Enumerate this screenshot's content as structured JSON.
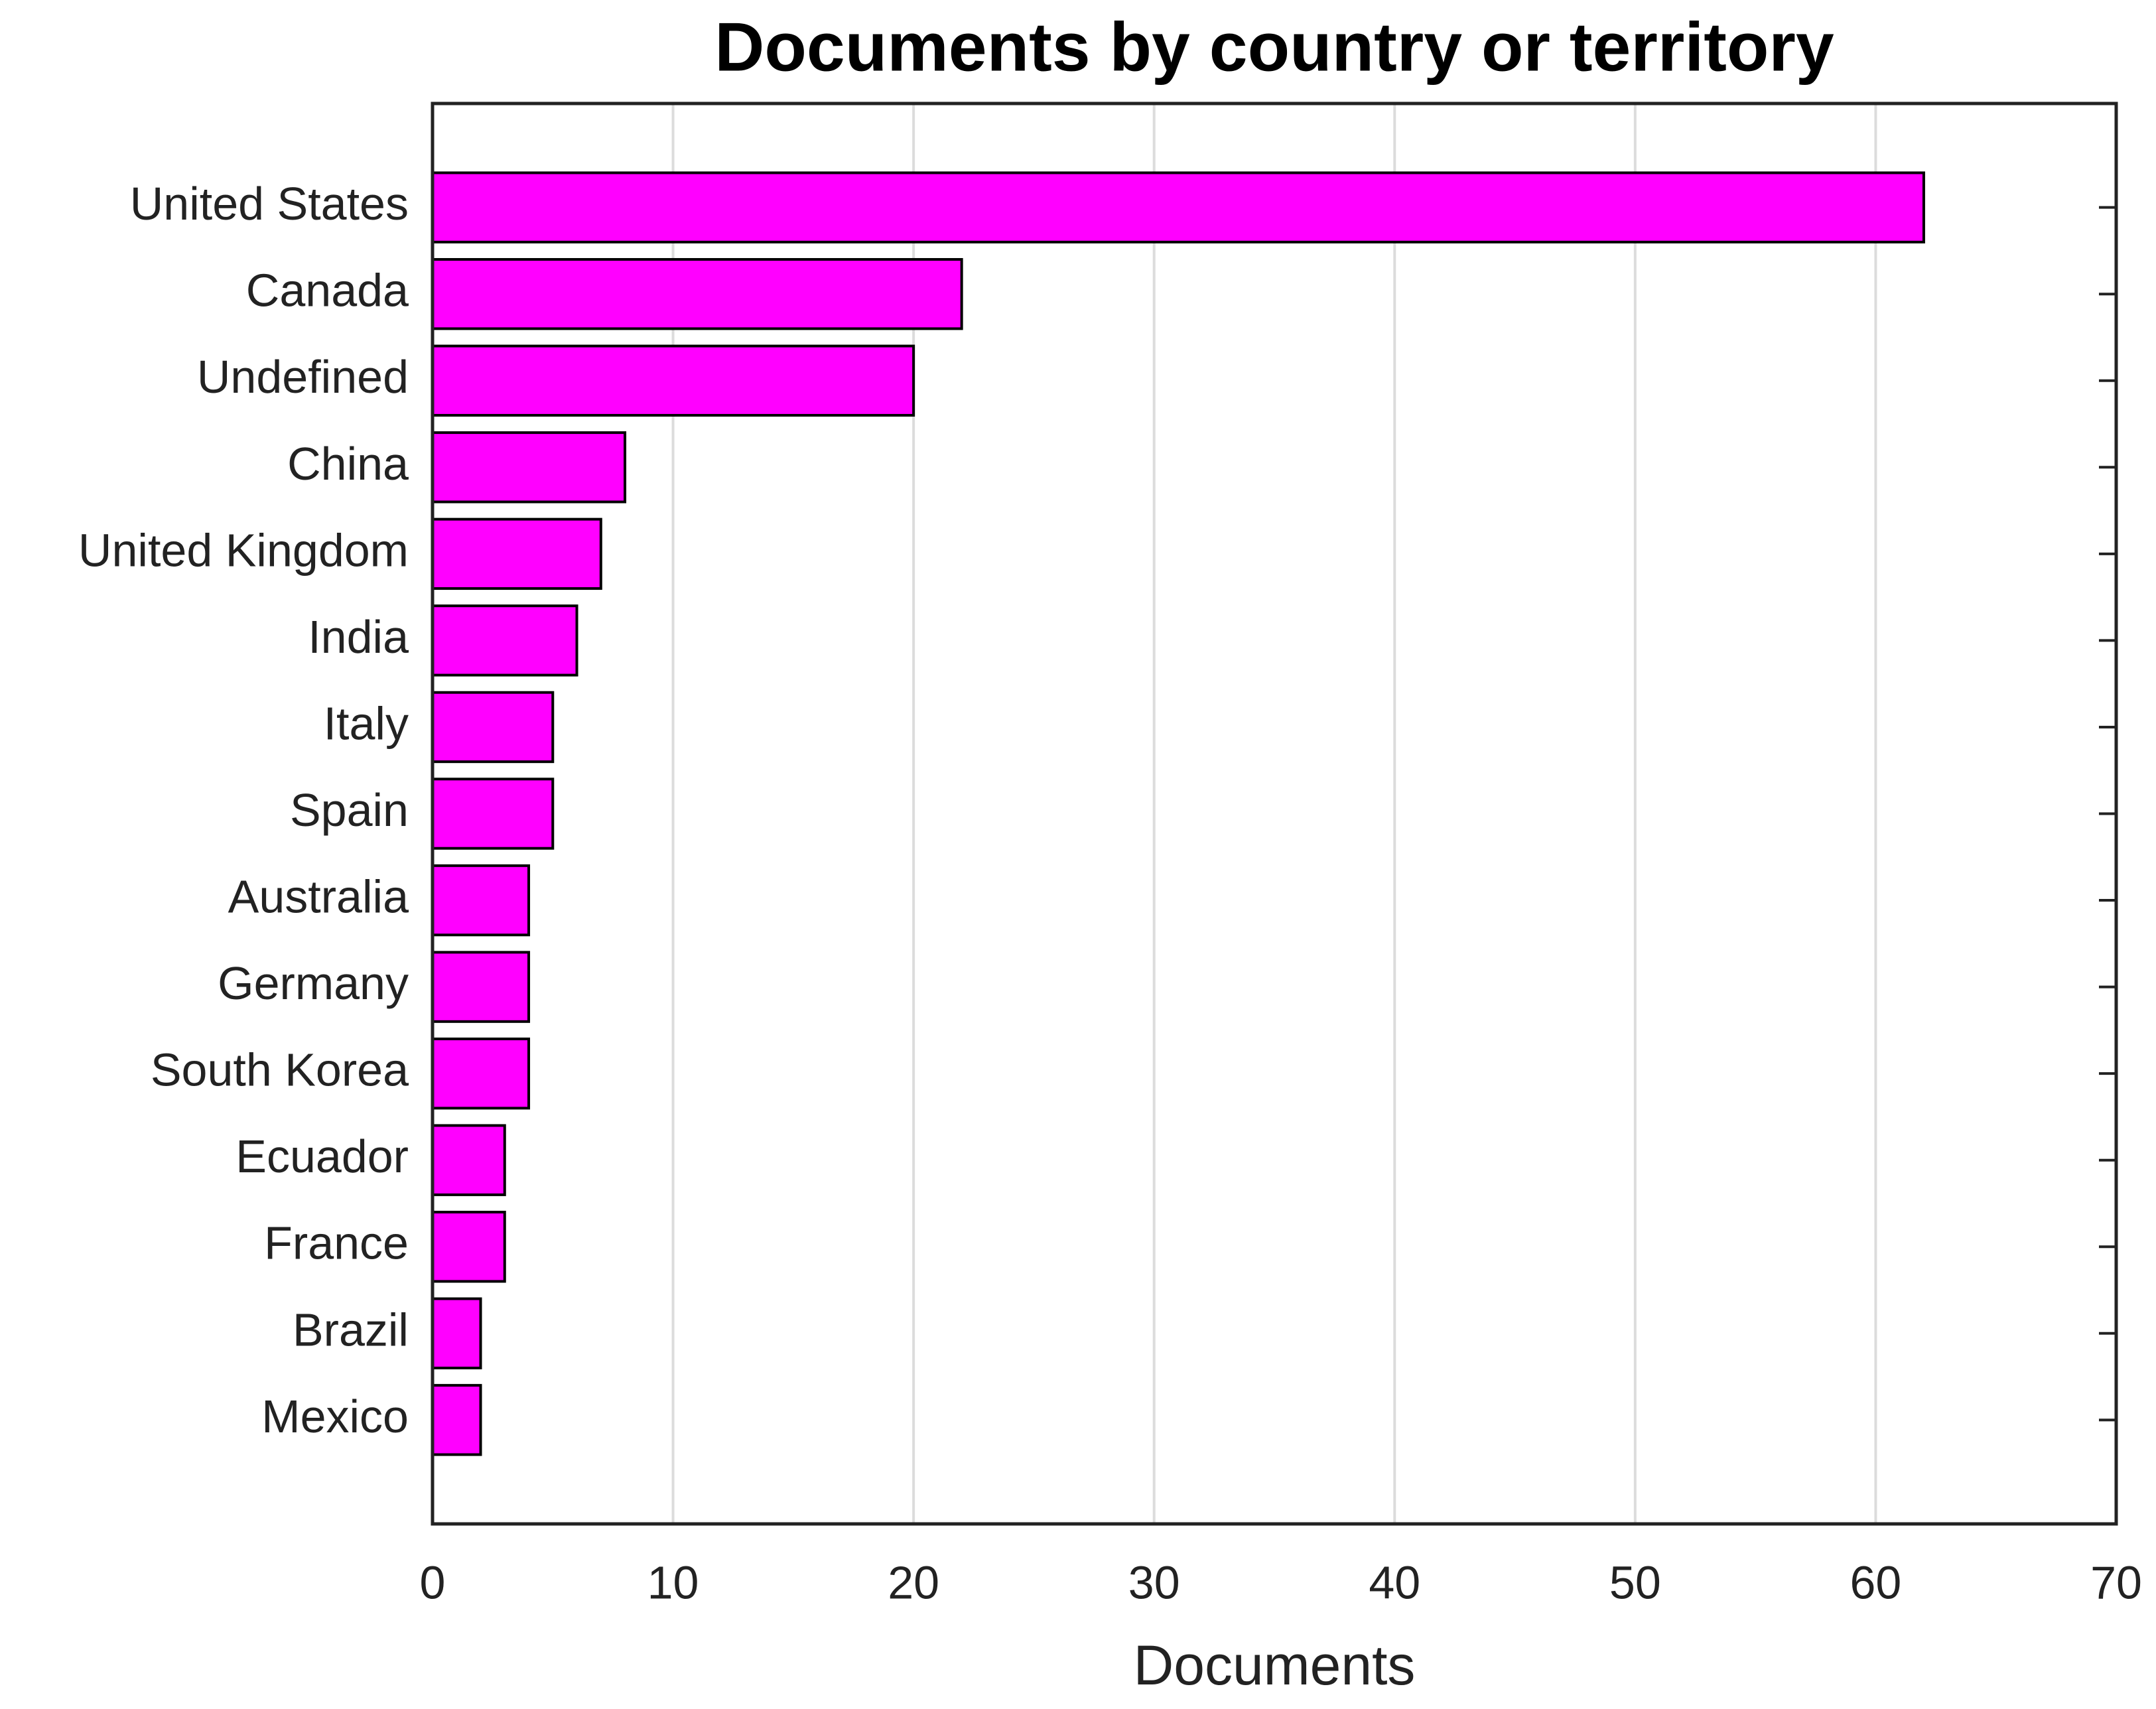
{
  "chart_data": {
    "type": "barh",
    "title": "Documents by country or territory",
    "x_label": "Documents",
    "categories": [
      "United States",
      "Canada",
      "Undefined",
      "China",
      "United Kingdom",
      "India",
      "Italy",
      "Spain",
      "Australia",
      "Germany",
      "South Korea",
      "Ecuador",
      "France",
      "Brazil",
      "Mexico"
    ],
    "values": [
      62,
      22,
      20,
      8,
      7,
      6,
      5,
      5,
      4,
      4,
      4,
      3,
      3,
      2,
      2
    ],
    "color": "#ff00ff",
    "xlim": [
      0,
      70
    ],
    "xticks": [
      0,
      10,
      20,
      30,
      40,
      50,
      60,
      70
    ],
    "grid": true
  }
}
